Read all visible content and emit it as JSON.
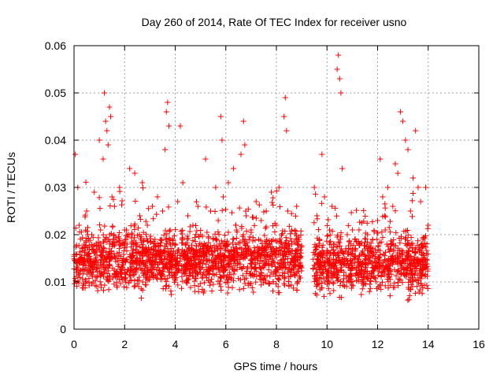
{
  "chart_data": {
    "type": "scatter",
    "title": "Day 260 of 2014, Rate Of TEC Index for receiver usno",
    "xlabel": "GPS time / hours",
    "ylabel": "ROTI / TECUs",
    "xlim": [
      0,
      16
    ],
    "ylim": [
      0,
      0.06
    ],
    "xticks": [
      "0",
      "2",
      "4",
      "6",
      "8",
      "10",
      "12",
      "14",
      "16"
    ],
    "yticks": [
      "0",
      "0.01",
      "0.02",
      "0.03",
      "0.04",
      "0.05",
      "0.06"
    ],
    "grid": true,
    "marker": "+",
    "color": "#ff0000",
    "series": [
      {
        "name": "ROTI",
        "x": [
          0.05,
          0.1,
          0.15,
          0.2,
          0.3,
          0.4,
          0.5,
          0.6,
          0.7,
          0.8,
          0.9,
          1.0,
          1.05,
          1.15,
          1.2,
          1.25,
          1.3,
          1.35,
          1.4,
          1.45,
          1.5,
          1.55,
          1.6,
          1.7,
          1.8,
          1.9,
          2.0,
          2.1,
          2.2,
          2.3,
          2.4,
          2.5,
          2.6,
          2.7,
          2.8,
          2.9,
          3.0,
          3.1,
          3.2,
          3.3,
          3.4,
          3.5,
          3.6,
          3.65,
          3.7,
          3.75,
          3.8,
          3.9,
          4.0,
          4.1,
          4.2,
          4.3,
          4.4,
          4.5,
          4.6,
          4.7,
          4.8,
          4.9,
          5.0,
          5.1,
          5.2,
          5.3,
          5.4,
          5.5,
          5.6,
          5.7,
          5.8,
          5.85,
          5.9,
          6.0,
          6.1,
          6.2,
          6.3,
          6.4,
          6.5,
          6.6,
          6.7,
          6.75,
          6.8,
          6.9,
          7.0,
          7.1,
          7.2,
          7.3,
          7.4,
          7.5,
          7.6,
          7.7,
          7.8,
          7.9,
          8.0,
          8.1,
          8.2,
          8.3,
          8.35,
          8.4,
          8.45,
          8.5,
          8.6,
          8.7,
          8.8,
          8.9,
          9.0,
          9.5,
          9.6,
          9.7,
          9.8,
          9.9,
          10.0,
          10.1,
          10.2,
          10.3,
          10.4,
          10.45,
          10.5,
          10.55,
          10.6,
          10.7,
          10.8,
          10.9,
          11.0,
          11.1,
          11.2,
          11.3,
          11.4,
          11.5,
          11.6,
          11.7,
          11.8,
          11.9,
          12.0,
          12.1,
          12.2,
          12.3,
          12.4,
          12.5,
          12.6,
          12.7,
          12.8,
          12.9,
          13.0,
          13.1,
          13.2,
          13.3,
          13.4,
          13.5,
          13.6,
          13.7,
          13.8,
          13.9,
          14.0
        ],
        "y": [
          0.037,
          0.012,
          0.03,
          0.022,
          0.015,
          0.018,
          0.025,
          0.014,
          0.02,
          0.029,
          0.017,
          0.04,
          0.021,
          0.036,
          0.05,
          0.044,
          0.042,
          0.039,
          0.047,
          0.045,
          0.028,
          0.019,
          0.026,
          0.016,
          0.03,
          0.013,
          0.021,
          0.018,
          0.034,
          0.02,
          0.033,
          0.015,
          0.024,
          0.031,
          0.017,
          0.022,
          0.014,
          0.026,
          0.019,
          0.028,
          0.016,
          0.025,
          0.038,
          0.046,
          0.048,
          0.043,
          0.021,
          0.019,
          0.016,
          0.027,
          0.043,
          0.031,
          0.018,
          0.024,
          0.015,
          0.022,
          0.013,
          0.026,
          0.02,
          0.017,
          0.036,
          0.012,
          0.025,
          0.019,
          0.03,
          0.023,
          0.045,
          0.04,
          0.028,
          0.018,
          0.031,
          0.016,
          0.034,
          0.022,
          0.014,
          0.037,
          0.044,
          0.039,
          0.024,
          0.017,
          0.021,
          0.015,
          0.027,
          0.019,
          0.023,
          0.013,
          0.025,
          0.018,
          0.029,
          0.016,
          0.022,
          0.03,
          0.014,
          0.045,
          0.049,
          0.042,
          0.025,
          0.018,
          0.021,
          0.015,
          0.026,
          0.019,
          0.013,
          0.03,
          0.024,
          0.019,
          0.037,
          0.028,
          0.016,
          0.021,
          0.026,
          0.018,
          0.055,
          0.058,
          0.053,
          0.05,
          0.034,
          0.015,
          0.02,
          0.013,
          0.017,
          0.019,
          0.015,
          0.018,
          0.014,
          0.017,
          0.02,
          0.016,
          0.019,
          0.015,
          0.023,
          0.036,
          0.028,
          0.021,
          0.03,
          0.017,
          0.026,
          0.035,
          0.033,
          0.046,
          0.044,
          0.04,
          0.038,
          0.025,
          0.032,
          0.042,
          0.03,
          0.027,
          0.019,
          0.03,
          0.022
        ]
      }
    ],
    "cloud": {
      "segments": [
        {
          "x_start": 0.0,
          "x_end": 9.0,
          "base": 0.0145,
          "spread": 0.0085
        },
        {
          "x_start": 9.45,
          "x_end": 14.0,
          "base": 0.0135,
          "spread": 0.0085
        }
      ],
      "floor": 0.003,
      "samples": 2600
    }
  }
}
